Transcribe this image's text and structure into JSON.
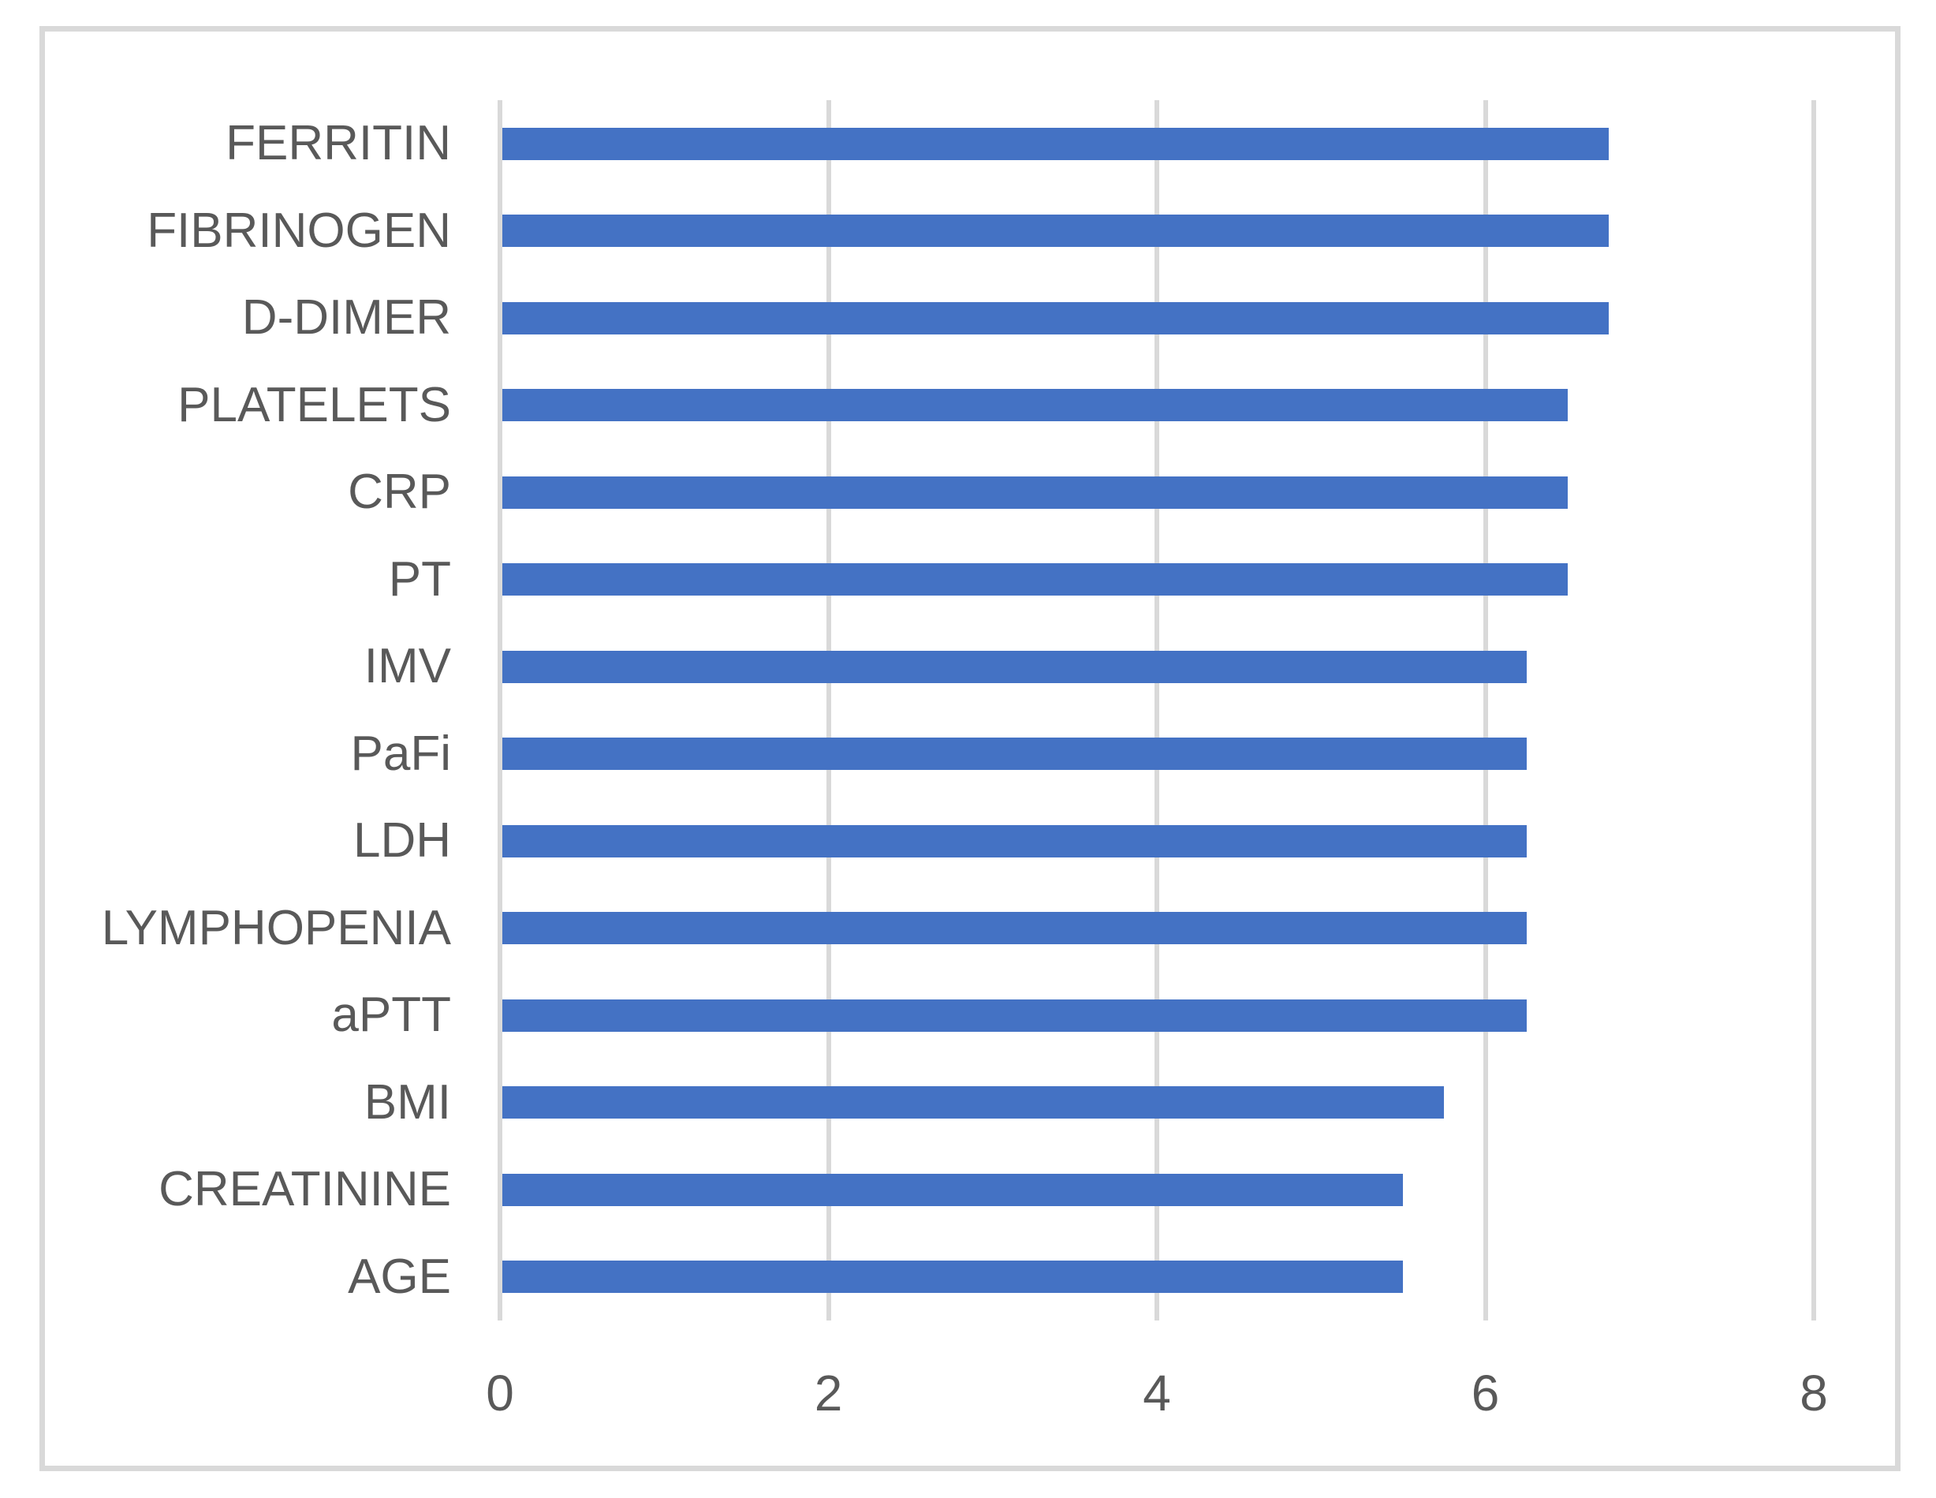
{
  "chart_data": {
    "type": "bar",
    "orientation": "horizontal",
    "title": "",
    "categories": [
      "FERRITIN",
      "FIBRINOGEN",
      "D-DIMER",
      "PLATELETS",
      "CRP",
      "PT",
      "IMV",
      "PaFi",
      "LDH",
      "LYMPHOPENIA",
      "aPTT",
      "BMI",
      "CREATININE",
      "AGE"
    ],
    "values": [
      6.75,
      6.75,
      6.75,
      6.5,
      6.5,
      6.5,
      6.25,
      6.25,
      6.25,
      6.25,
      6.25,
      5.75,
      5.5,
      5.5
    ],
    "xlabel": "",
    "ylabel": "",
    "xlim": [
      0,
      8
    ],
    "xticks": [
      "0",
      "2",
      "4",
      "6",
      "8"
    ],
    "grid": "vertical gridlines only",
    "legend": "none",
    "colors": {
      "bar": "#4472C4",
      "gridline": "#D9D9D9",
      "axis_text": "#595959",
      "frame_border": "#D9D9D9",
      "background": "#FFFFFF"
    }
  }
}
